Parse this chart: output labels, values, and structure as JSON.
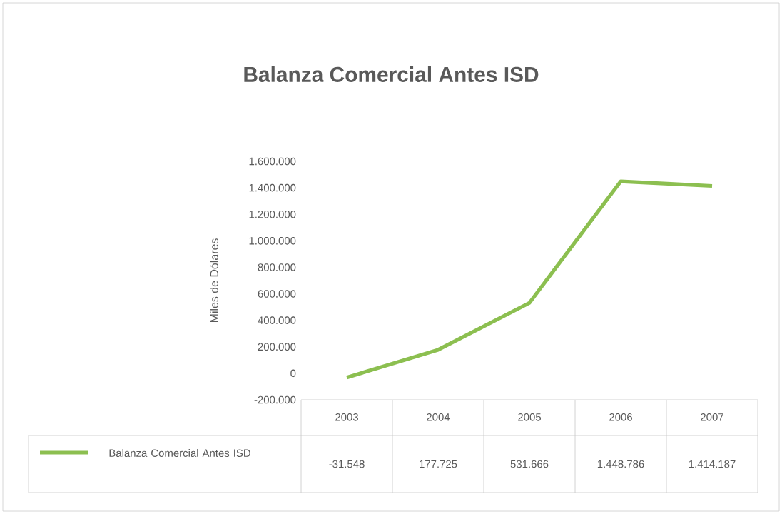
{
  "chart_data": {
    "type": "line",
    "title": "Balanza Comercial Antes ISD",
    "ylabel": "Miles de Dólares",
    "categories": [
      "2003",
      "2004",
      "2005",
      "2006",
      "2007"
    ],
    "series": [
      {
        "name": "Balanza Comercial Antes ISD",
        "color": "#8cbf50",
        "values": [
          -31548,
          177725,
          531666,
          1448786,
          1414187
        ],
        "value_labels": [
          "-31.548",
          "177.725",
          "531.666",
          "1.448.786",
          "1.414.187"
        ]
      }
    ],
    "ylim": [
      -200000,
      1600000
    ],
    "yticks": [
      {
        "value": -200000,
        "label": "-200.000"
      },
      {
        "value": 0,
        "label": "0"
      },
      {
        "value": 200000,
        "label": "200.000"
      },
      {
        "value": 400000,
        "label": "400.000"
      },
      {
        "value": 600000,
        "label": "600.000"
      },
      {
        "value": 800000,
        "label": "800.000"
      },
      {
        "value": 1000000,
        "label": "1.000.000"
      },
      {
        "value": 1200000,
        "label": "1.200.000"
      },
      {
        "value": 1400000,
        "label": "1.400.000"
      },
      {
        "value": 1600000,
        "label": "1.600.000"
      }
    ],
    "legend": "bottom",
    "marker": "none",
    "line_style": "solid"
  }
}
